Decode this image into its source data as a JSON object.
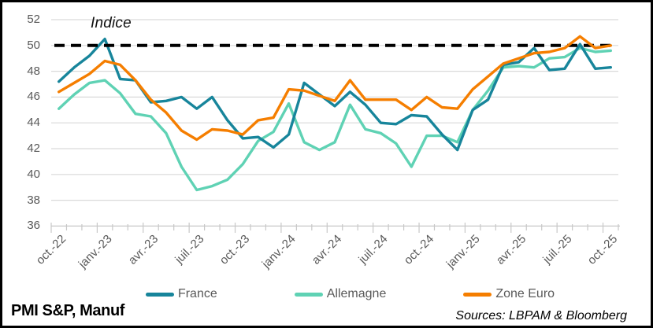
{
  "frame": {
    "footer_left": "PMI S&P, Manuf",
    "footer_right": "Sources: LBPAM & Bloomberg"
  },
  "chart_data": {
    "type": "line",
    "title": "Indice",
    "xlabel": "",
    "ylabel": "Indice",
    "ylim": [
      36,
      52
    ],
    "yticks": [
      52,
      50,
      48,
      46,
      44,
      42,
      40,
      38,
      36
    ],
    "grid": "horizontal",
    "legend_position": "bottom",
    "n_points": 37,
    "points_per_label": 3,
    "categories": [
      "oct.-22",
      "janv.-23",
      "avr.-23",
      "juil.-23",
      "oct.-23",
      "janv.-24",
      "avr.-24",
      "juil.-24",
      "oct.-24",
      "janv.-25",
      "avr.-25",
      "juil.-25",
      "oct.-25"
    ],
    "reference_line": {
      "value": 50,
      "style": "dashed",
      "color": "#000000"
    },
    "axis_colors": {
      "tick_label": "#595959",
      "gridline": "#D9D9D9",
      "axis_line": "#C8C8C8"
    },
    "series": [
      {
        "name": "France",
        "color": "#17859B",
        "values": [
          47.2,
          48.3,
          49.2,
          50.5,
          47.4,
          47.3,
          45.6,
          45.7,
          46.0,
          45.1,
          46.0,
          44.2,
          42.8,
          42.9,
          42.1,
          43.1,
          47.1,
          46.2,
          45.3,
          46.4,
          45.4,
          44.0,
          43.9,
          44.6,
          44.5,
          43.1,
          41.9,
          45.0,
          45.8,
          48.5,
          48.7,
          49.8,
          48.1,
          48.2,
          50.1,
          48.2,
          48.3
        ]
      },
      {
        "name": "Allemagne",
        "color": "#5FD2B4",
        "values": [
          45.1,
          46.2,
          47.1,
          47.3,
          46.3,
          44.7,
          44.5,
          43.2,
          40.6,
          38.8,
          39.1,
          39.6,
          40.8,
          42.6,
          43.3,
          45.5,
          42.5,
          41.9,
          42.5,
          45.4,
          43.5,
          43.2,
          42.4,
          40.6,
          43.0,
          43.0,
          42.5,
          45.0,
          46.5,
          48.3,
          48.4,
          48.3,
          49.0,
          49.1,
          49.8,
          49.5,
          49.6
        ]
      },
      {
        "name": "Zone Euro",
        "color": "#F57E00",
        "values": [
          46.4,
          47.1,
          47.8,
          48.8,
          48.5,
          47.3,
          45.8,
          44.8,
          43.4,
          42.7,
          43.5,
          43.4,
          43.1,
          44.2,
          44.4,
          46.6,
          46.5,
          46.1,
          45.7,
          47.3,
          45.8,
          45.8,
          45.8,
          45.0,
          46.0,
          45.2,
          45.1,
          46.6,
          47.6,
          48.6,
          49.0,
          49.4,
          49.5,
          49.8,
          50.7,
          49.8,
          50.0
        ]
      }
    ]
  }
}
